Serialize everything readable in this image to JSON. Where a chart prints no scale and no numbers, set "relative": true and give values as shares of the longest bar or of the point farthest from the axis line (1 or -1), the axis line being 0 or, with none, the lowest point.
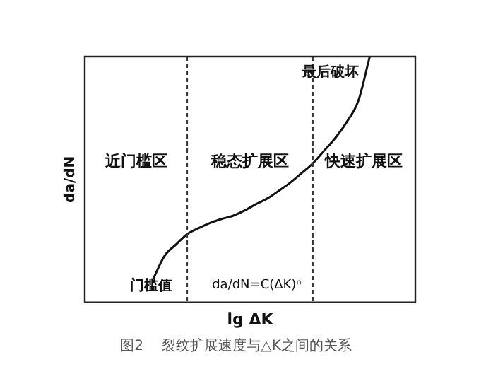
{
  "chart_data": {
    "type": "line",
    "relative": true,
    "title": "图2　 裂纹扩展速度与△K之间的关系",
    "xlabel": "lg ΔK",
    "ylabel": "da/dN",
    "legend": false,
    "marker": "none",
    "line_style": "solid",
    "categories": [
      null,
      null,
      null,
      null,
      null,
      null,
      null,
      null,
      null,
      null,
      null,
      null,
      null,
      null,
      null,
      null,
      null,
      null,
      null,
      null,
      null,
      null,
      null,
      null,
      null,
      null,
      null,
      null,
      null,
      null
    ],
    "series": [
      {
        "color": "#111111",
        "values": [
          null,
          null,
          null,
          null,
          null,
          null,
          0.095,
          0.189,
          0.235,
          0.278,
          0.302,
          0.323,
          0.339,
          0.352,
          0.373,
          0.399,
          0.422,
          0.453,
          0.486,
          0.525,
          0.565,
          0.617,
          0.67,
          0.735,
          0.82,
          1.0,
          null,
          null,
          null,
          null
        ]
      }
    ],
    "annotations": [
      "近门槛区",
      "稳态扩展区",
      "快速扩展区",
      "最后破坏",
      "门槛值",
      "da/dN=C(ΔK)ⁿ"
    ]
  }
}
